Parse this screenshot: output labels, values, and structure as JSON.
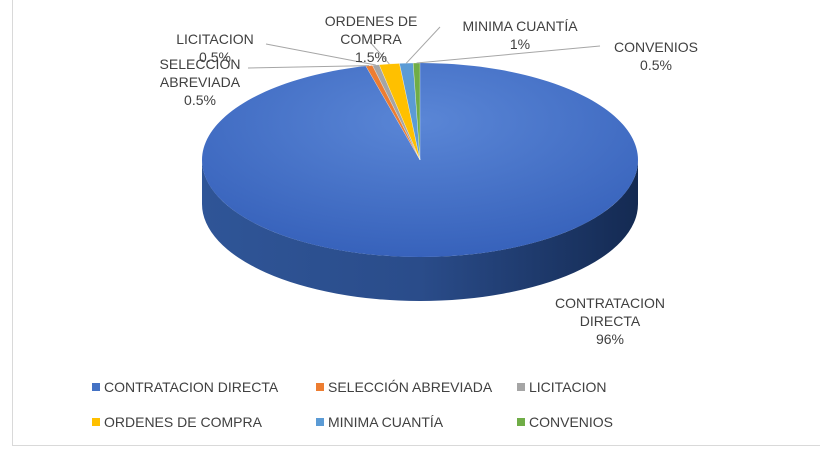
{
  "chart_data": {
    "type": "pie3d",
    "categories": [
      "CONTRATACION DIRECTA",
      "SELECCIÓN ABREVIADA",
      "LICITACION",
      "ORDENES DE COMPRA",
      "MINIMA CUANTÍA",
      "CONVENIOS"
    ],
    "values": [
      96,
      0.5,
      0.5,
      1.5,
      1,
      0.5
    ],
    "value_labels": [
      "96%",
      "0.5%",
      "0.5%",
      "1.5%",
      "1%",
      "0.5%"
    ],
    "colors": [
      "#4472c4",
      "#ed7d31",
      "#a5a5a5",
      "#ffc000",
      "#5b9bd5",
      "#70ad47"
    ],
    "legend": "bottom"
  }
}
